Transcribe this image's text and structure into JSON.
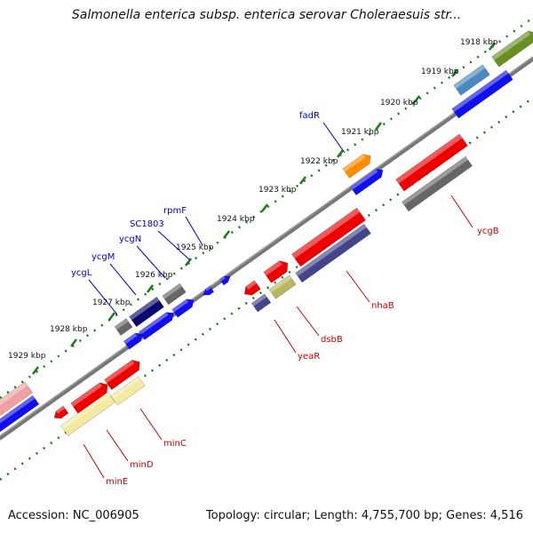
{
  "title": "Salmonella enterica subsp. enterica serovar Choleraesuis str...",
  "footer": {
    "accession": "Accession: NC_006905",
    "summary": "Topology: circular; Length: 4,755,700 bp; Genes: 4,516"
  },
  "tick_labels": [
    "1918 kbp",
    "1919 kbp",
    "1920 kbp",
    "1921 kbp",
    "1922 kbp",
    "1923 kbp",
    "1924 kbp",
    "1925 kbp",
    "1926 kbp",
    "1927 kbp",
    "1928 kbp",
    "1929 kbp"
  ],
  "gene_labels_top": [
    "fadR",
    "rpmF",
    "SC1803",
    "ycgN",
    "ycgM",
    "ycgL"
  ],
  "gene_labels_bottom": [
    "ycgB",
    "nhaB",
    "dsbB",
    "yeaR",
    "minC",
    "minD",
    "minE"
  ],
  "colors": {
    "axis_dots": "#1a7a1a",
    "backbone": "#777777",
    "top_label": "#0000cc",
    "bottom_label": "#cc0000",
    "red": "#ee0000",
    "blue": "#1010ee",
    "dark_navy": "#0a0a6e",
    "slate": "#44448a",
    "grey": "#666666",
    "orange": "#ff8c00",
    "khaki": "#b8b860",
    "light_yellow": "#f3e9a0",
    "pink": "#f0a0a0",
    "steel_blue": "#4a88c0",
    "olive": "#6b8e23"
  }
}
